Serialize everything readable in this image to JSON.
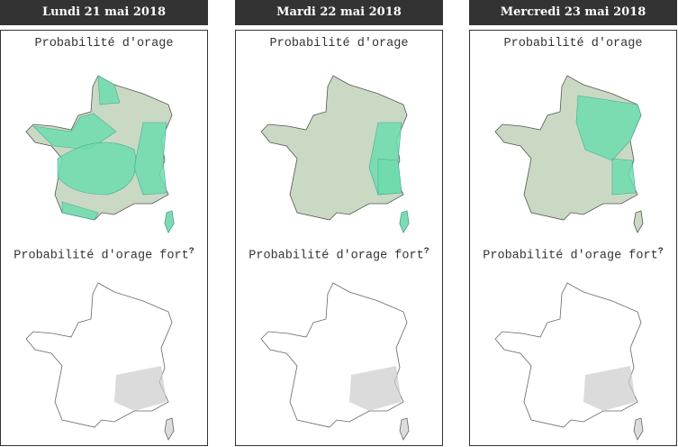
{
  "days": [
    {
      "date": "Lundi 21 mai 2018",
      "title_storm": "Probabilité d'orage",
      "title_strong": "Probabilité d'orage fort",
      "help": "?",
      "zones": [
        "nw",
        "center",
        "east",
        "south",
        "north",
        "corsica"
      ]
    },
    {
      "date": "Mardi 22 mai 2018",
      "title_storm": "Probabilité d'orage",
      "title_strong": "Probabilité d'orage fort",
      "help": "?",
      "zones": [
        "east",
        "alps",
        "corsica"
      ]
    },
    {
      "date": "Mercredi 23 mai 2018",
      "title_storm": "Probabilité d'orage",
      "title_strong": "Probabilité d'orage fort",
      "help": "?",
      "zones": [
        "northeast",
        "alps"
      ]
    }
  ],
  "colors": {
    "header_bg": "#333333",
    "risk_low": "#c9d9c3",
    "risk_high": "#6fdcae"
  }
}
